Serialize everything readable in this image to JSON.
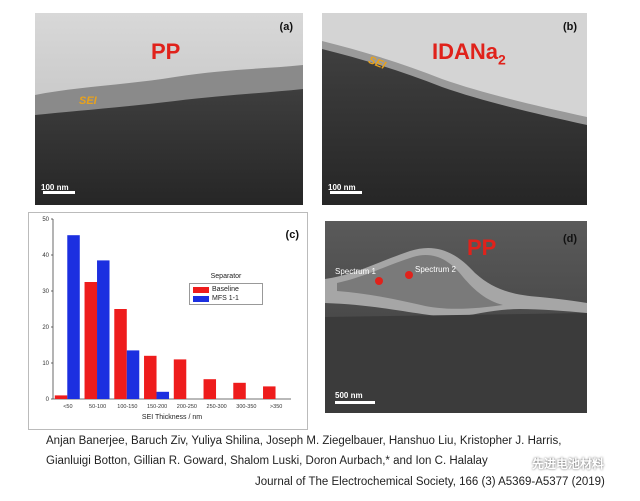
{
  "panel_a": {
    "letter": "(a)",
    "material": "PP",
    "layer_label": "SEI",
    "scale_bar": "100 nm"
  },
  "panel_b": {
    "letter": "(b)",
    "material": "IDANa",
    "material_subscript": "2",
    "layer_label": "SEI",
    "scale_bar": "100 nm"
  },
  "panel_c": {
    "letter": "(c)",
    "legend_title": "Separator",
    "legend": [
      "Baseline",
      "MFS 1-1"
    ],
    "colors": {
      "baseline": "#ee1c1c",
      "mfs": "#1c2fe0"
    }
  },
  "panel_d": {
    "letter": "(d)",
    "material": "PP",
    "spectrum_1": "Spectrum 1",
    "spectrum_2": "Spectrum 2",
    "scale_bar": "500 nm"
  },
  "chart_data": {
    "type": "bar",
    "xlabel": "SEI Thickness / nm",
    "ylabel": "",
    "ylim": [
      0,
      50
    ],
    "yticks": [
      0,
      10,
      20,
      30,
      40,
      50
    ],
    "categories": [
      "<50",
      "50-100",
      "100-150",
      "150-200",
      "200-250",
      "250-300",
      "300-350",
      ">350"
    ],
    "series": [
      {
        "name": "Baseline",
        "color": "#ee1c1c",
        "values": [
          1,
          32.5,
          25,
          12,
          11,
          5.5,
          4.5,
          3.5
        ]
      },
      {
        "name": "MFS 1-1",
        "color": "#1c2fe0",
        "values": [
          45.5,
          38.5,
          13.5,
          2,
          0,
          0,
          0,
          0
        ]
      }
    ],
    "legend_position": "right"
  },
  "citation": {
    "line1": "Anjan Banerjee, Baruch Ziv, Yuliya Shilina, Joseph M. Ziegelbauer, Hanshuo Liu, Kristopher J. Harris,",
    "line2": "Gianluigi Botton, Gillian R. Goward, Shalom Luski, Doron Aurbach,* and Ion C. Halalay",
    "journal": "Journal of The Electrochemical Society, 166 (3) A5369-A5377 (2019)"
  },
  "watermark": "先进电池材料"
}
